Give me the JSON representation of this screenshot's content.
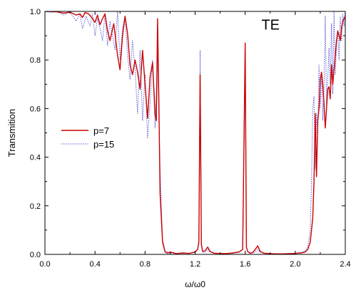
{
  "chart_data": {
    "type": "line",
    "title": "",
    "annotation": "TE",
    "xlabel": "ω/ω0",
    "ylabel": "Transmition",
    "xlim": [
      0.0,
      2.4
    ],
    "ylim": [
      0.0,
      1.0
    ],
    "xticks": [
      0.0,
      0.4,
      0.8,
      1.2,
      1.6,
      2.0,
      2.4
    ],
    "xtick_labels": [
      "0.0",
      "0.4",
      "0.8",
      "1.2",
      "1.6",
      "2.0",
      "2.4"
    ],
    "yticks": [
      0.0,
      0.2,
      0.4,
      0.6,
      0.8,
      1.0
    ],
    "ytick_labels": [
      "0.0",
      "0.2",
      "0.4",
      "0.6",
      "0.8",
      "1.0"
    ],
    "grid": false,
    "legend_position": "middle-left",
    "series": [
      {
        "name": "p=7",
        "color": "#cc0000",
        "style": "solid",
        "x": [
          0.0,
          0.05,
          0.1,
          0.15,
          0.2,
          0.25,
          0.28,
          0.3,
          0.32,
          0.35,
          0.38,
          0.4,
          0.42,
          0.44,
          0.46,
          0.48,
          0.5,
          0.52,
          0.55,
          0.58,
          0.6,
          0.62,
          0.64,
          0.66,
          0.68,
          0.7,
          0.72,
          0.74,
          0.76,
          0.78,
          0.8,
          0.82,
          0.84,
          0.86,
          0.88,
          0.89,
          0.9,
          0.91,
          0.92,
          0.94,
          0.96,
          0.98,
          1.0,
          1.05,
          1.1,
          1.15,
          1.2,
          1.22,
          1.23,
          1.24,
          1.25,
          1.26,
          1.28,
          1.3,
          1.32,
          1.35,
          1.4,
          1.45,
          1.5,
          1.55,
          1.58,
          1.6,
          1.61,
          1.62,
          1.64,
          1.66,
          1.68,
          1.7,
          1.72,
          1.75,
          1.8,
          1.85,
          1.9,
          1.95,
          2.0,
          2.05,
          2.08,
          2.1,
          2.12,
          2.14,
          2.15,
          2.16,
          2.17,
          2.18,
          2.19,
          2.2,
          2.21,
          2.22,
          2.23,
          2.24,
          2.25,
          2.26,
          2.27,
          2.28,
          2.29,
          2.3,
          2.31,
          2.32,
          2.33,
          2.34,
          2.35,
          2.36,
          2.37,
          2.38,
          2.39,
          2.4
        ],
        "y": [
          1.0,
          1.0,
          0.998,
          0.993,
          0.997,
          0.985,
          0.99,
          0.975,
          0.995,
          0.99,
          0.97,
          0.955,
          0.985,
          0.945,
          0.97,
          0.99,
          0.92,
          0.88,
          0.95,
          0.82,
          0.76,
          0.9,
          0.98,
          0.91,
          0.78,
          0.74,
          0.8,
          0.75,
          0.68,
          0.84,
          0.7,
          0.56,
          0.73,
          0.79,
          0.58,
          0.55,
          0.97,
          0.64,
          0.25,
          0.05,
          0.01,
          0.005,
          0.01,
          0.003,
          0.006,
          0.004,
          0.01,
          0.02,
          0.05,
          0.74,
          0.04,
          0.012,
          0.015,
          0.03,
          0.012,
          0.005,
          0.004,
          0.003,
          0.006,
          0.01,
          0.02,
          0.87,
          0.03,
          0.012,
          0.005,
          0.008,
          0.02,
          0.035,
          0.012,
          0.005,
          0.003,
          0.002,
          0.002,
          0.003,
          0.004,
          0.006,
          0.01,
          0.02,
          0.05,
          0.15,
          0.3,
          0.58,
          0.32,
          0.55,
          0.6,
          0.72,
          0.75,
          0.7,
          0.62,
          0.52,
          0.6,
          0.68,
          0.69,
          0.64,
          0.78,
          0.7,
          0.76,
          0.82,
          0.88,
          0.92,
          0.9,
          0.88,
          0.93,
          0.96,
          0.97,
          0.98
        ]
      },
      {
        "name": "p=15",
        "color": "#5b5bd6",
        "style": "dotted",
        "x": [
          0.0,
          0.05,
          0.1,
          0.15,
          0.2,
          0.25,
          0.28,
          0.3,
          0.33,
          0.36,
          0.38,
          0.4,
          0.42,
          0.44,
          0.46,
          0.48,
          0.5,
          0.52,
          0.54,
          0.56,
          0.58,
          0.6,
          0.62,
          0.64,
          0.66,
          0.68,
          0.7,
          0.72,
          0.74,
          0.76,
          0.78,
          0.8,
          0.82,
          0.84,
          0.86,
          0.88,
          0.9,
          0.92,
          0.94,
          0.96,
          1.0,
          1.05,
          1.1,
          1.15,
          1.2,
          1.22,
          1.23,
          1.24,
          1.25,
          1.26,
          1.28,
          1.3,
          1.32,
          1.35,
          1.4,
          1.45,
          1.5,
          1.55,
          1.58,
          1.6,
          1.61,
          1.62,
          1.64,
          1.68,
          1.7,
          1.72,
          1.75,
          1.8,
          1.85,
          1.9,
          1.95,
          2.0,
          2.05,
          2.08,
          2.1,
          2.12,
          2.13,
          2.14,
          2.15,
          2.16,
          2.17,
          2.18,
          2.19,
          2.2,
          2.21,
          2.22,
          2.23,
          2.24,
          2.25,
          2.26,
          2.27,
          2.28,
          2.29,
          2.3,
          2.31,
          2.32,
          2.33,
          2.34,
          2.35,
          2.36,
          2.37,
          2.38,
          2.39,
          2.4
        ],
        "y": [
          1.0,
          0.995,
          1.0,
          0.985,
          0.998,
          0.96,
          0.99,
          0.93,
          0.98,
          0.94,
          0.99,
          0.9,
          0.97,
          0.93,
          0.88,
          0.99,
          0.86,
          0.96,
          0.9,
          0.84,
          1.0,
          0.8,
          0.93,
          0.98,
          0.82,
          0.72,
          0.88,
          0.76,
          0.58,
          0.84,
          0.55,
          0.74,
          0.48,
          0.62,
          0.8,
          0.52,
          0.82,
          0.35,
          0.06,
          0.015,
          0.005,
          0.004,
          0.003,
          0.005,
          0.008,
          0.02,
          0.06,
          0.84,
          0.05,
          0.01,
          0.008,
          0.02,
          0.01,
          0.004,
          0.003,
          0.002,
          0.004,
          0.008,
          0.02,
          0.8,
          0.03,
          0.01,
          0.004,
          0.01,
          0.02,
          0.01,
          0.004,
          0.002,
          0.002,
          0.002,
          0.003,
          0.005,
          0.008,
          0.015,
          0.03,
          0.1,
          0.3,
          0.6,
          0.65,
          0.35,
          0.58,
          0.5,
          0.78,
          0.6,
          0.75,
          0.55,
          0.68,
          0.98,
          0.62,
          0.72,
          0.85,
          0.7,
          0.95,
          0.66,
          1.0,
          0.74,
          0.86,
          0.92,
          0.8,
          0.98,
          0.88,
          0.99,
          0.94,
          1.0
        ]
      }
    ]
  }
}
